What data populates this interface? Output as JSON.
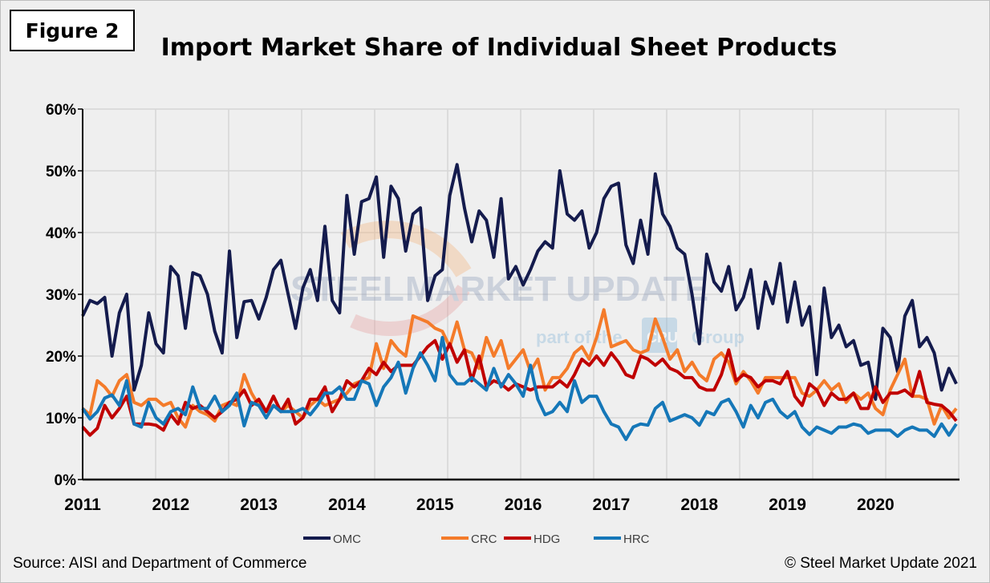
{
  "figure_label": "Figure 2",
  "source": "Source: AISI and Department of Commerce",
  "copyright": "© Steel Market Update 2021",
  "watermark": {
    "text1": "STEEL",
    "text2": "MARKET UPDATE",
    "text3": "part of the",
    "text4": "CRU",
    "text5": "Group"
  },
  "chart_data": {
    "type": "line",
    "title": "Import Market Share of Individual Sheet Products",
    "xlabel": "",
    "ylabel": "",
    "x_start": "2011-01",
    "x_end": "2020-12",
    "frequency": "monthly",
    "x_tick_labels": [
      "2011",
      "2012",
      "2013",
      "2014",
      "2015",
      "2016",
      "2017",
      "2018",
      "2019",
      "2020"
    ],
    "y_tick_labels": [
      "0%",
      "10%",
      "20%",
      "30%",
      "40%",
      "50%",
      "60%"
    ],
    "ylim": [
      0,
      60
    ],
    "grid": true,
    "legend": "bottom",
    "series": [
      {
        "name": "OMC",
        "color": "#141b4d",
        "values": [
          26.5,
          29,
          28.5,
          29.5,
          20,
          27,
          30,
          14.5,
          18.5,
          27,
          22,
          20.5,
          34.5,
          33,
          24.5,
          33.5,
          33,
          30,
          24,
          20.5,
          37,
          23,
          28.8,
          29,
          26,
          29.5,
          34,
          35.5,
          30,
          24.5,
          31,
          34,
          29,
          41,
          29,
          27,
          46,
          36.5,
          45,
          45.5,
          49,
          36,
          47.5,
          45.5,
          37,
          43,
          44,
          29,
          33,
          34,
          46,
          51,
          44,
          38.5,
          43.5,
          42,
          36,
          45.5,
          32.5,
          34.5,
          31.5,
          34,
          37,
          38.5,
          37.5,
          50,
          43,
          42,
          43.5,
          37.5,
          40,
          45.5,
          47.5,
          48,
          38,
          35,
          42,
          36.5,
          49.5,
          43,
          41,
          37.5,
          36.5,
          30,
          22,
          36.5,
          32,
          30.5,
          34.5,
          27.5,
          29.5,
          34,
          24.5,
          32,
          28.5,
          35,
          25.5,
          32,
          25,
          28,
          17,
          31,
          23,
          25,
          21.5,
          22.5,
          18.5,
          19,
          13,
          24.5,
          23,
          17.5,
          26.5,
          29,
          21.5,
          23,
          20.5,
          14.5,
          18,
          15.5
        ]
      },
      {
        "name": "CRC",
        "color": "#f47b2a",
        "values": [
          11.5,
          10.5,
          16,
          15,
          13.5,
          16,
          17,
          12.5,
          12,
          13,
          13,
          12,
          12.5,
          10,
          8.5,
          12,
          11,
          10.5,
          9.5,
          12,
          12.5,
          12,
          17,
          14,
          12,
          11,
          12,
          11,
          12,
          11,
          10,
          12,
          13,
          12,
          12.5,
          13,
          14,
          15.5,
          16,
          16.5,
          22,
          18,
          22.5,
          21,
          20,
          26.5,
          26,
          25.5,
          24.5,
          24,
          21.5,
          25.5,
          21,
          20.5,
          18,
          23,
          20,
          22.5,
          18,
          19.5,
          21,
          17.5,
          19.5,
          14.5,
          16.5,
          16.5,
          18,
          20.5,
          21.5,
          19.5,
          23,
          27.5,
          21.5,
          22,
          22.5,
          21,
          20.5,
          21,
          26,
          23,
          19.5,
          21,
          17.5,
          19,
          17,
          16,
          19.5,
          20.5,
          19,
          15.5,
          17.5,
          16,
          14,
          16.5,
          16.5,
          16.5,
          16.5,
          16.5,
          14,
          13.5,
          14.5,
          16,
          14.5,
          15.5,
          12.5,
          14,
          13,
          14,
          11.5,
          10.5,
          14.5,
          17,
          19.5,
          13.5,
          13.5,
          13,
          9,
          12,
          10,
          11.5
        ]
      },
      {
        "name": "HDG",
        "color": "#c00000",
        "values": [
          8.5,
          7.2,
          8.3,
          12,
          10,
          11.5,
          13.5,
          9,
          9,
          9,
          8.8,
          8,
          10.5,
          9,
          12.5,
          11.5,
          12,
          11,
          10,
          11,
          12.5,
          13,
          14.5,
          12,
          13,
          11,
          13.5,
          11,
          13,
          9,
          10,
          13,
          13,
          15,
          11,
          13,
          16,
          15,
          16,
          18,
          17,
          19,
          17.5,
          18.5,
          18.5,
          18.5,
          20,
          21.5,
          22.5,
          19.5,
          22,
          19,
          21,
          16,
          20,
          15,
          16,
          15.5,
          14.5,
          15.5,
          15,
          14.5,
          15,
          15,
          15,
          16,
          15,
          17,
          19.5,
          18.5,
          20,
          18.5,
          20.5,
          19,
          17,
          16.5,
          20,
          19.5,
          18.5,
          19.5,
          18,
          17.5,
          16.5,
          16.5,
          15,
          14.5,
          14.5,
          17,
          21,
          16,
          17,
          16.5,
          15,
          16,
          16,
          15.5,
          17.5,
          13.5,
          12,
          15.5,
          14.5,
          12,
          14,
          13,
          13,
          14,
          11.5,
          11.5,
          15,
          12.5,
          14,
          14,
          14.5,
          13.5,
          17.5,
          12.5,
          12.2,
          12,
          11,
          9.5
        ]
      },
      {
        "name": "HRC",
        "color": "#1577b8",
        "values": [
          11.5,
          9.8,
          11,
          13.2,
          13.7,
          12,
          16,
          9,
          8.5,
          12.5,
          10,
          9,
          11,
          11.5,
          10.5,
          15,
          11.5,
          11.5,
          13.5,
          11,
          12,
          14,
          8.7,
          12.5,
          12,
          10,
          12,
          11,
          11,
          11,
          11.5,
          10.5,
          12,
          14,
          14,
          15,
          13,
          13,
          16,
          15.5,
          12,
          15,
          16.5,
          19,
          14,
          18,
          20.5,
          18.5,
          16,
          23,
          17,
          15.5,
          15.5,
          16.5,
          15.5,
          14.5,
          18,
          15,
          17,
          15.5,
          13.5,
          18.5,
          13,
          10.5,
          11,
          12.5,
          11,
          16,
          12.5,
          13.5,
          13.5,
          11,
          9,
          8.5,
          6.5,
          8.5,
          9,
          8.8,
          11.5,
          12.5,
          9.5,
          10,
          10.5,
          10,
          8.8,
          11,
          10.5,
          12.5,
          13,
          11,
          8.5,
          12,
          10,
          12.5,
          13,
          11,
          10,
          11,
          8.5,
          7.3,
          8.5,
          8,
          7.5,
          8.5,
          8.5,
          9,
          8.7,
          7.5,
          8,
          8,
          8,
          7,
          8,
          8.5,
          8,
          8,
          7,
          9,
          7.2,
          9
        ]
      }
    ]
  }
}
